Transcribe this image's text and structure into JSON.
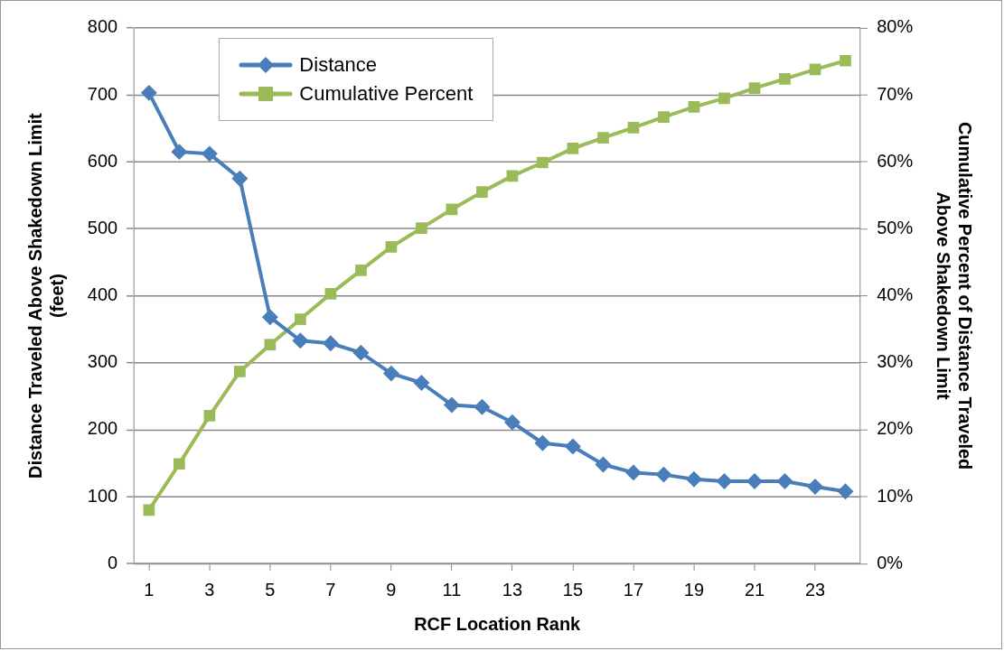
{
  "chart_data": {
    "type": "line",
    "x": [
      1,
      2,
      3,
      4,
      5,
      6,
      7,
      8,
      9,
      10,
      11,
      12,
      13,
      14,
      15,
      16,
      17,
      18,
      19,
      20,
      21,
      22,
      23,
      24
    ],
    "xlim": [
      0.5,
      24.5
    ],
    "xticks": [
      1,
      3,
      5,
      7,
      9,
      11,
      13,
      15,
      17,
      19,
      21,
      23
    ],
    "series": [
      {
        "name": "Distance",
        "color": "#4a7ebb",
        "marker": "diamond",
        "values": [
          703,
          615,
          612,
          575,
          368,
          333,
          329,
          315,
          284,
          270,
          237,
          234,
          211,
          180,
          175,
          148,
          136,
          133,
          126,
          123,
          123,
          123,
          115,
          108
        ]
      },
      {
        "name": "Cumulative Percent",
        "color": "#9bbb59",
        "marker": "square",
        "axis": "y2",
        "values": [
          8.0,
          14.9,
          22.1,
          28.7,
          32.7,
          36.5,
          40.3,
          43.8,
          47.3,
          50.1,
          52.9,
          55.5,
          57.9,
          59.9,
          62.0,
          63.6,
          65.1,
          66.7,
          68.2,
          69.5,
          71.0,
          72.4,
          73.8,
          75.1
        ]
      }
    ],
    "xlabel": "RCF Location Rank",
    "ylabel": "Distance Traveled Above Shakedown Limit\n(feet)",
    "y2label": "Cumulative Percent of Distance Traveled\nAbove Shakedown Limit",
    "ylim": [
      0,
      800
    ],
    "yticks": [
      0,
      100,
      200,
      300,
      400,
      500,
      600,
      700,
      800
    ],
    "y2lim": [
      0,
      80
    ],
    "y2ticks": [
      {
        "value": 0,
        "label": "0%"
      },
      {
        "value": 10,
        "label": "10%"
      },
      {
        "value": 20,
        "label": "20%"
      },
      {
        "value": 30,
        "label": "30%"
      },
      {
        "value": 40,
        "label": "40%"
      },
      {
        "value": 50,
        "label": "50%"
      },
      {
        "value": 60,
        "label": "60%"
      },
      {
        "value": 70,
        "label": "70%"
      },
      {
        "value": 80,
        "label": "80%"
      }
    ],
    "grid": "y",
    "legend": "top left",
    "line_style": "solid"
  }
}
